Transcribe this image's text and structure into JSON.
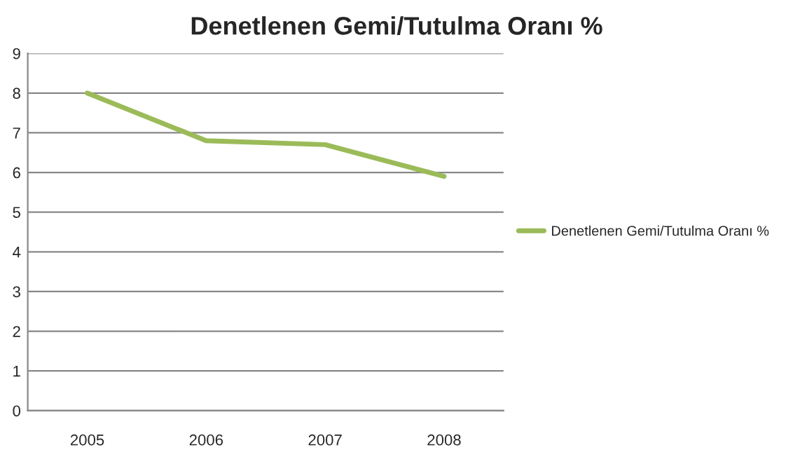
{
  "chart_data": {
    "type": "line",
    "title": "Denetlenen Gemi/Tutulma Oranı %",
    "categories": [
      "2005",
      "2006",
      "2007",
      "2008"
    ],
    "series": [
      {
        "name": "Denetlenen Gemi/Tutulma Oranı %",
        "color": "#9bbb59",
        "values": [
          8.0,
          6.8,
          6.7,
          5.9
        ]
      }
    ],
    "ylim": [
      0,
      9
    ],
    "yticks": [
      0,
      1,
      2,
      3,
      4,
      5,
      6,
      7,
      8,
      9
    ],
    "grid": "y",
    "legend": "right",
    "marker": "none",
    "line_style": "solid"
  }
}
